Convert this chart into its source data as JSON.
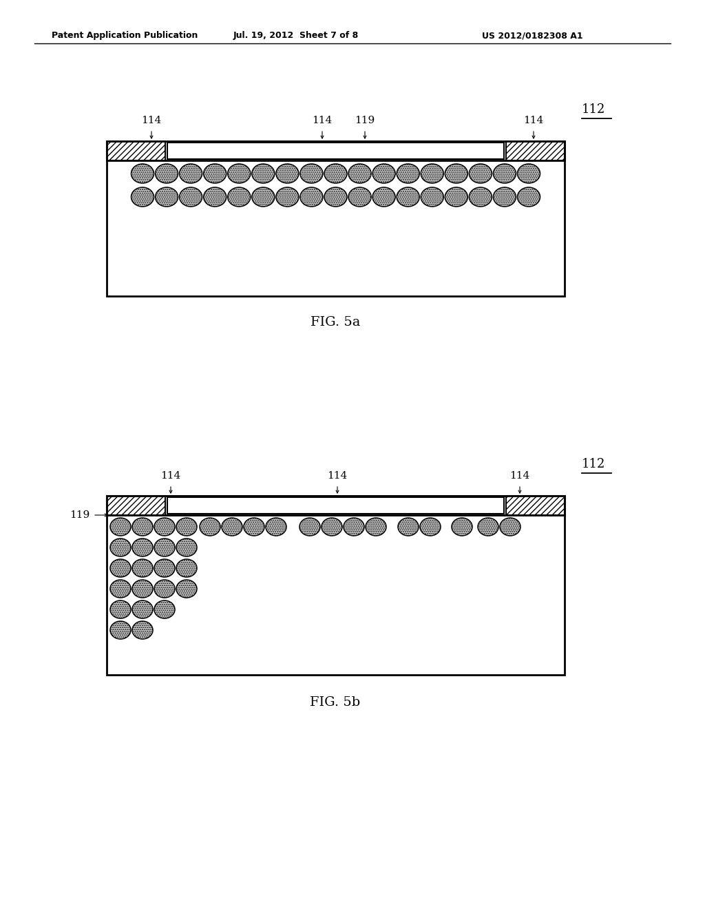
{
  "bg_color": "#ffffff",
  "header_left": "Patent Application Publication",
  "header_mid": "Jul. 19, 2012  Sheet 7 of 8",
  "header_right": "US 2012/0182308 A1",
  "fig5a_label": "FIG. 5a",
  "fig5b_label": "FIG. 5b"
}
